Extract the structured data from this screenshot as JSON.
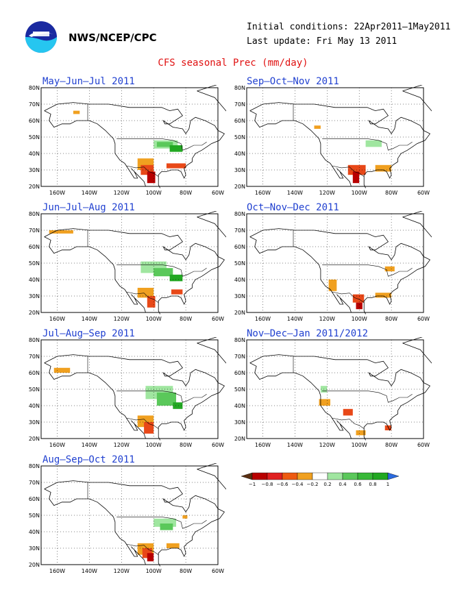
{
  "header": {
    "agency": "NWS/NCEP/CPC",
    "initial_conditions": "Initial conditions: 22Apr2011–1May2011",
    "last_update": "Last update: Fri May 13 2011",
    "title": "CFS seasonal Prec (mm/day)"
  },
  "axes": {
    "lon_ticks": [
      "160W",
      "140W",
      "120W",
      "100W",
      "80W",
      "60W"
    ],
    "lat_ticks": [
      "20N",
      "30N",
      "40N",
      "50N",
      "60N",
      "70N",
      "80N"
    ]
  },
  "colors": {
    "wet_light": "#a0e6a0",
    "wet_mid": "#5ac85a",
    "wet_dark": "#22a822",
    "dry_light": "#f0a020",
    "dry_mid": "#e84818",
    "dry_dark": "#b80000",
    "map_lines": "#000000",
    "title_red": "#e01010",
    "panel_title_blue": "#2040d0"
  },
  "panels": [
    {
      "title": "May–Jun–Jul 2011"
    },
    {
      "title": "Sep–Oct–Nov 2011"
    },
    {
      "title": "Jun–Jul–Aug 2011"
    },
    {
      "title": "Oct–Nov–Dec 2011"
    },
    {
      "title": "Jul–Aug–Sep 2011"
    },
    {
      "title": "Nov–Dec–Jan 2011/2012"
    },
    {
      "title": "Aug–Sep–Oct 2011"
    }
  ],
  "legend": {
    "labels": [
      "−1",
      "−0.8",
      "−0.6",
      "−0.4",
      "−0.2",
      "0.2",
      "0.4",
      "0.6",
      "0.8",
      "1"
    ],
    "colors": [
      "#5a2e10",
      "#b80000",
      "#e02020",
      "#ee5a10",
      "#f0a020",
      "#ffffff",
      "#a0e6a0",
      "#5ac85a",
      "#38b838",
      "#22a822",
      "#2a6ae0"
    ]
  }
}
